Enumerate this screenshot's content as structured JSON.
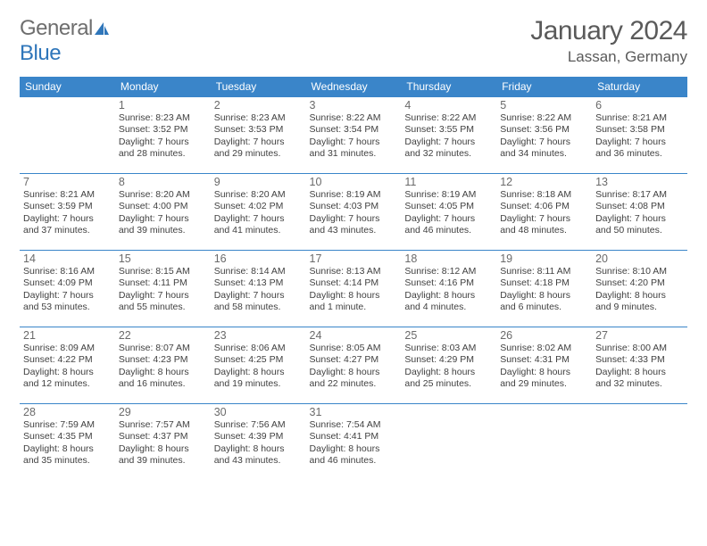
{
  "logo": {
    "general": "General",
    "blue": "Blue"
  },
  "title": "January 2024",
  "location": "Lassan, Germany",
  "colors": {
    "header_bg": "#3a85c9",
    "header_fg": "#ffffff",
    "border": "#3a85c9",
    "text": "#414141",
    "daynum": "#6a6a6a",
    "title": "#5a5a5a",
    "logo_gray": "#6e6e6e",
    "logo_blue": "#2f76ba"
  },
  "weekdays": [
    "Sunday",
    "Monday",
    "Tuesday",
    "Wednesday",
    "Thursday",
    "Friday",
    "Saturday"
  ],
  "weeks": [
    [
      {
        "num": "",
        "sunrise": "",
        "sunset": "",
        "day": ""
      },
      {
        "num": "1",
        "sunrise": "Sunrise: 8:23 AM",
        "sunset": "Sunset: 3:52 PM",
        "day": "Daylight: 7 hours and 28 minutes."
      },
      {
        "num": "2",
        "sunrise": "Sunrise: 8:23 AM",
        "sunset": "Sunset: 3:53 PM",
        "day": "Daylight: 7 hours and 29 minutes."
      },
      {
        "num": "3",
        "sunrise": "Sunrise: 8:22 AM",
        "sunset": "Sunset: 3:54 PM",
        "day": "Daylight: 7 hours and 31 minutes."
      },
      {
        "num": "4",
        "sunrise": "Sunrise: 8:22 AM",
        "sunset": "Sunset: 3:55 PM",
        "day": "Daylight: 7 hours and 32 minutes."
      },
      {
        "num": "5",
        "sunrise": "Sunrise: 8:22 AM",
        "sunset": "Sunset: 3:56 PM",
        "day": "Daylight: 7 hours and 34 minutes."
      },
      {
        "num": "6",
        "sunrise": "Sunrise: 8:21 AM",
        "sunset": "Sunset: 3:58 PM",
        "day": "Daylight: 7 hours and 36 minutes."
      }
    ],
    [
      {
        "num": "7",
        "sunrise": "Sunrise: 8:21 AM",
        "sunset": "Sunset: 3:59 PM",
        "day": "Daylight: 7 hours and 37 minutes."
      },
      {
        "num": "8",
        "sunrise": "Sunrise: 8:20 AM",
        "sunset": "Sunset: 4:00 PM",
        "day": "Daylight: 7 hours and 39 minutes."
      },
      {
        "num": "9",
        "sunrise": "Sunrise: 8:20 AM",
        "sunset": "Sunset: 4:02 PM",
        "day": "Daylight: 7 hours and 41 minutes."
      },
      {
        "num": "10",
        "sunrise": "Sunrise: 8:19 AM",
        "sunset": "Sunset: 4:03 PM",
        "day": "Daylight: 7 hours and 43 minutes."
      },
      {
        "num": "11",
        "sunrise": "Sunrise: 8:19 AM",
        "sunset": "Sunset: 4:05 PM",
        "day": "Daylight: 7 hours and 46 minutes."
      },
      {
        "num": "12",
        "sunrise": "Sunrise: 8:18 AM",
        "sunset": "Sunset: 4:06 PM",
        "day": "Daylight: 7 hours and 48 minutes."
      },
      {
        "num": "13",
        "sunrise": "Sunrise: 8:17 AM",
        "sunset": "Sunset: 4:08 PM",
        "day": "Daylight: 7 hours and 50 minutes."
      }
    ],
    [
      {
        "num": "14",
        "sunrise": "Sunrise: 8:16 AM",
        "sunset": "Sunset: 4:09 PM",
        "day": "Daylight: 7 hours and 53 minutes."
      },
      {
        "num": "15",
        "sunrise": "Sunrise: 8:15 AM",
        "sunset": "Sunset: 4:11 PM",
        "day": "Daylight: 7 hours and 55 minutes."
      },
      {
        "num": "16",
        "sunrise": "Sunrise: 8:14 AM",
        "sunset": "Sunset: 4:13 PM",
        "day": "Daylight: 7 hours and 58 minutes."
      },
      {
        "num": "17",
        "sunrise": "Sunrise: 8:13 AM",
        "sunset": "Sunset: 4:14 PM",
        "day": "Daylight: 8 hours and 1 minute."
      },
      {
        "num": "18",
        "sunrise": "Sunrise: 8:12 AM",
        "sunset": "Sunset: 4:16 PM",
        "day": "Daylight: 8 hours and 4 minutes."
      },
      {
        "num": "19",
        "sunrise": "Sunrise: 8:11 AM",
        "sunset": "Sunset: 4:18 PM",
        "day": "Daylight: 8 hours and 6 minutes."
      },
      {
        "num": "20",
        "sunrise": "Sunrise: 8:10 AM",
        "sunset": "Sunset: 4:20 PM",
        "day": "Daylight: 8 hours and 9 minutes."
      }
    ],
    [
      {
        "num": "21",
        "sunrise": "Sunrise: 8:09 AM",
        "sunset": "Sunset: 4:22 PM",
        "day": "Daylight: 8 hours and 12 minutes."
      },
      {
        "num": "22",
        "sunrise": "Sunrise: 8:07 AM",
        "sunset": "Sunset: 4:23 PM",
        "day": "Daylight: 8 hours and 16 minutes."
      },
      {
        "num": "23",
        "sunrise": "Sunrise: 8:06 AM",
        "sunset": "Sunset: 4:25 PM",
        "day": "Daylight: 8 hours and 19 minutes."
      },
      {
        "num": "24",
        "sunrise": "Sunrise: 8:05 AM",
        "sunset": "Sunset: 4:27 PM",
        "day": "Daylight: 8 hours and 22 minutes."
      },
      {
        "num": "25",
        "sunrise": "Sunrise: 8:03 AM",
        "sunset": "Sunset: 4:29 PM",
        "day": "Daylight: 8 hours and 25 minutes."
      },
      {
        "num": "26",
        "sunrise": "Sunrise: 8:02 AM",
        "sunset": "Sunset: 4:31 PM",
        "day": "Daylight: 8 hours and 29 minutes."
      },
      {
        "num": "27",
        "sunrise": "Sunrise: 8:00 AM",
        "sunset": "Sunset: 4:33 PM",
        "day": "Daylight: 8 hours and 32 minutes."
      }
    ],
    [
      {
        "num": "28",
        "sunrise": "Sunrise: 7:59 AM",
        "sunset": "Sunset: 4:35 PM",
        "day": "Daylight: 8 hours and 35 minutes."
      },
      {
        "num": "29",
        "sunrise": "Sunrise: 7:57 AM",
        "sunset": "Sunset: 4:37 PM",
        "day": "Daylight: 8 hours and 39 minutes."
      },
      {
        "num": "30",
        "sunrise": "Sunrise: 7:56 AM",
        "sunset": "Sunset: 4:39 PM",
        "day": "Daylight: 8 hours and 43 minutes."
      },
      {
        "num": "31",
        "sunrise": "Sunrise: 7:54 AM",
        "sunset": "Sunset: 4:41 PM",
        "day": "Daylight: 8 hours and 46 minutes."
      },
      {
        "num": "",
        "sunrise": "",
        "sunset": "",
        "day": ""
      },
      {
        "num": "",
        "sunrise": "",
        "sunset": "",
        "day": ""
      },
      {
        "num": "",
        "sunrise": "",
        "sunset": "",
        "day": ""
      }
    ]
  ]
}
